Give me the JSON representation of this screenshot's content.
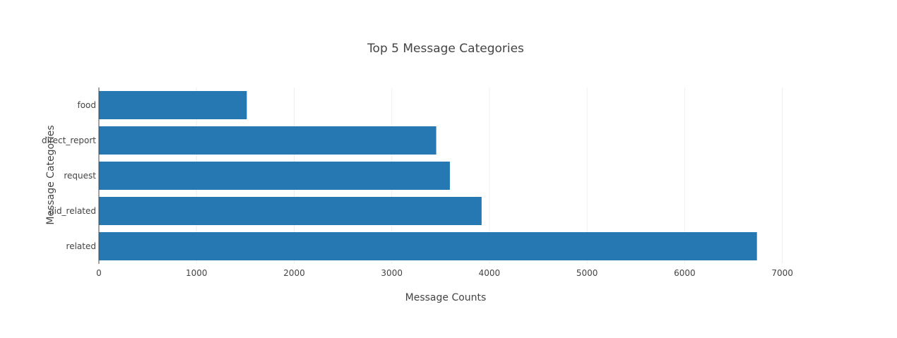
{
  "chart_data": {
    "type": "bar",
    "orientation": "horizontal",
    "title": "Top 5 Message Categories",
    "xlabel": "Message Counts",
    "ylabel": "Message Categories",
    "categories": [
      "food",
      "direct_report",
      "request",
      "aid_related",
      "related"
    ],
    "values": [
      1515,
      3455,
      3595,
      3920,
      6740
    ],
    "xlim": [
      0,
      7480
    ],
    "xticks": [
      0,
      1000,
      2000,
      3000,
      4000,
      5000,
      6000,
      7000
    ],
    "grid": true,
    "legend": false,
    "colors": {
      "bar": "#2678b2"
    }
  }
}
